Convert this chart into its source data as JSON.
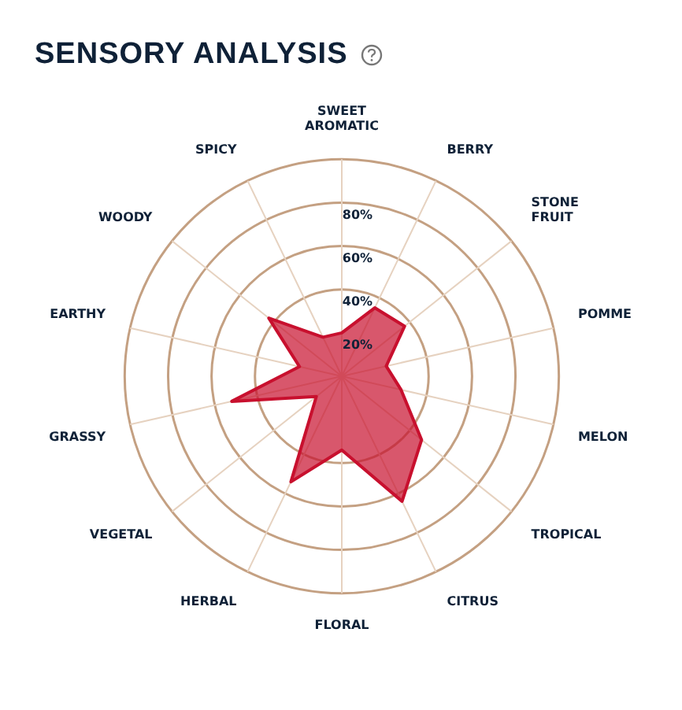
{
  "chart_data": {
    "type": "radar",
    "title": "SENSORY ANALYSIS",
    "categories": [
      "SWEET AROMATIC",
      "BERRY",
      "STONE FRUIT",
      "POMME",
      "MELON",
      "TROPICAL",
      "CITRUS",
      "FLORAL",
      "HERBAL",
      "VEGETAL",
      "GRASSY",
      "EARTHY",
      "WOODY",
      "SPICY"
    ],
    "series": [
      {
        "color": "#c8102e",
        "values": [
          20,
          35,
          37,
          21,
          28,
          47,
          64,
          34,
          54,
          15,
          52,
          20,
          43,
          20
        ]
      }
    ],
    "ylim": [
      0,
      100
    ],
    "yticks": [
      {
        "value": 20,
        "label": "20%"
      },
      {
        "value": 40,
        "label": "40%"
      },
      {
        "value": 60,
        "label": "60%"
      },
      {
        "value": 80,
        "label": "80%"
      }
    ],
    "grid": true,
    "legend": false
  }
}
